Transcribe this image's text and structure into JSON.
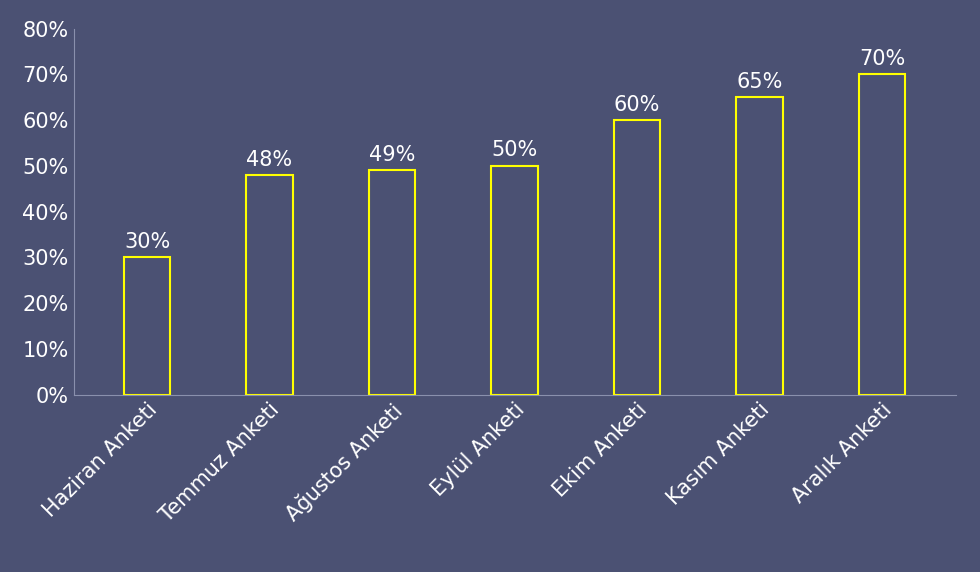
{
  "chart_data": {
    "type": "bar",
    "categories": [
      "Haziran Anketi",
      "Temmuz Anketi",
      "Ağustos Anketi",
      "Eylül Anketi",
      "Ekim Anketi",
      "Kasım Anketi",
      "Aralık Anketi"
    ],
    "values": [
      30,
      48,
      49,
      50,
      60,
      65,
      70
    ],
    "value_labels": [
      "30%",
      "48%",
      "49%",
      "50%",
      "60%",
      "65%",
      "70%"
    ],
    "color": "#ffff00",
    "ylim": [
      0,
      80
    ],
    "yticks": [
      {
        "value": 0,
        "label": "0%"
      },
      {
        "value": 10,
        "label": "10%"
      },
      {
        "value": 20,
        "label": "20%"
      },
      {
        "value": 30,
        "label": "30%"
      },
      {
        "value": 40,
        "label": "40%"
      },
      {
        "value": 50,
        "label": "50%"
      },
      {
        "value": 60,
        "label": "60%"
      },
      {
        "value": 70,
        "label": "70%"
      },
      {
        "value": 80,
        "label": "80%"
      }
    ],
    "data_labels": true,
    "grid": false
  }
}
